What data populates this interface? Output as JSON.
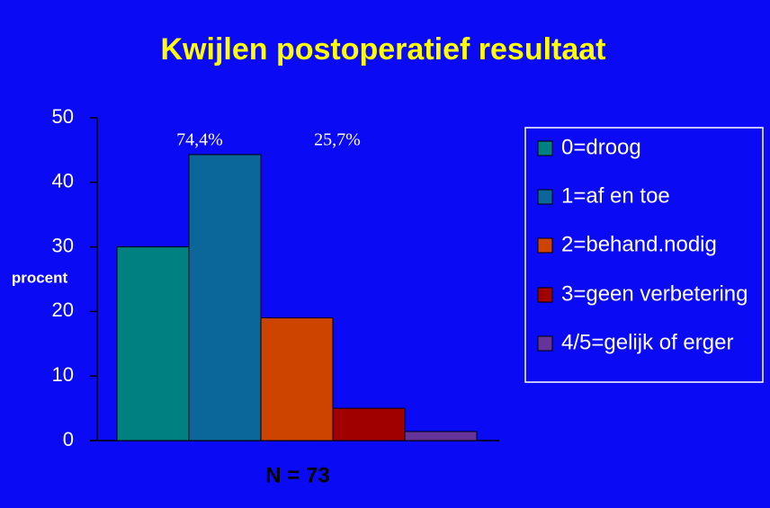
{
  "chart_data": {
    "type": "bar",
    "title": "Kwijlen postoperatief resultaat",
    "y_label": "procent",
    "x_label": "N = 73",
    "annotations": [
      "74,4%",
      "25,7%"
    ],
    "series": [
      {
        "name": "0=droog",
        "color": "#008080",
        "values": [
          30
        ]
      },
      {
        "name": "1=af en toe",
        "color": "#0b6699",
        "values": [
          44.3
        ]
      },
      {
        "name": "2=behand.nodig",
        "color": "#cc4400",
        "values": [
          19
        ]
      },
      {
        "name": "3=geen verbetering",
        "color": "#a00000",
        "values": [
          5
        ]
      },
      {
        "name": "4/5=gelijk of erger",
        "color": "#663399",
        "values": [
          1.4
        ]
      }
    ],
    "ylim": [
      0,
      50
    ],
    "yticks": [
      0,
      10,
      20,
      30,
      40,
      50
    ],
    "grid": false
  }
}
